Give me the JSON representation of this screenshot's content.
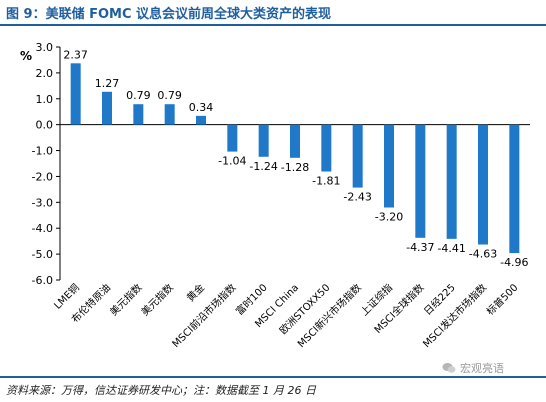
{
  "figure": {
    "title": "图 9：美联储 FOMC 议息会议前周全球大类资产的表现",
    "source": "资料来源：万得，信达证券研发中心；注：数据截至 1 月 26 日",
    "watermark": "宏观亮语"
  },
  "chart_data": {
    "type": "bar",
    "unit_label": "%",
    "categories": [
      "LME铜",
      "布伦特原油",
      "美元指数",
      "美元指数",
      "黄金",
      "MSCI前沿市场指数",
      "富时100",
      "MSCI China",
      "欧洲STOXX50",
      "MSCI新兴市场指数",
      "上证综指",
      "MSCI全球指数",
      "日经225",
      "MSCI发达市场指数",
      "标普500"
    ],
    "values": [
      2.37,
      1.27,
      0.79,
      0.79,
      0.34,
      -1.04,
      -1.24,
      -1.28,
      -1.81,
      -2.43,
      -3.2,
      -4.37,
      -4.41,
      -4.63,
      -4.96
    ],
    "data_labels": [
      "2.37",
      "1.27",
      "0.79",
      "0.79",
      "0.34",
      "-1.04",
      "-1.24",
      "-1.28",
      "-1.81",
      "-2.43",
      "-3.20",
      "-4.37",
      "-4.41",
      "-4.63",
      "-4.96"
    ],
    "ylim": [
      -6,
      3
    ],
    "yticks": [
      3,
      2,
      1,
      0,
      -1,
      -2,
      -3,
      -4,
      -5,
      -6
    ],
    "ytick_labels": [
      "3.0",
      "2.0",
      "1.0",
      "0.0",
      "-1.0",
      "-2.0",
      "-3.0",
      "-4.0",
      "-5.0",
      "-6.0"
    ],
    "bar_color": "#1f78c8",
    "grid": false,
    "legend": false
  }
}
